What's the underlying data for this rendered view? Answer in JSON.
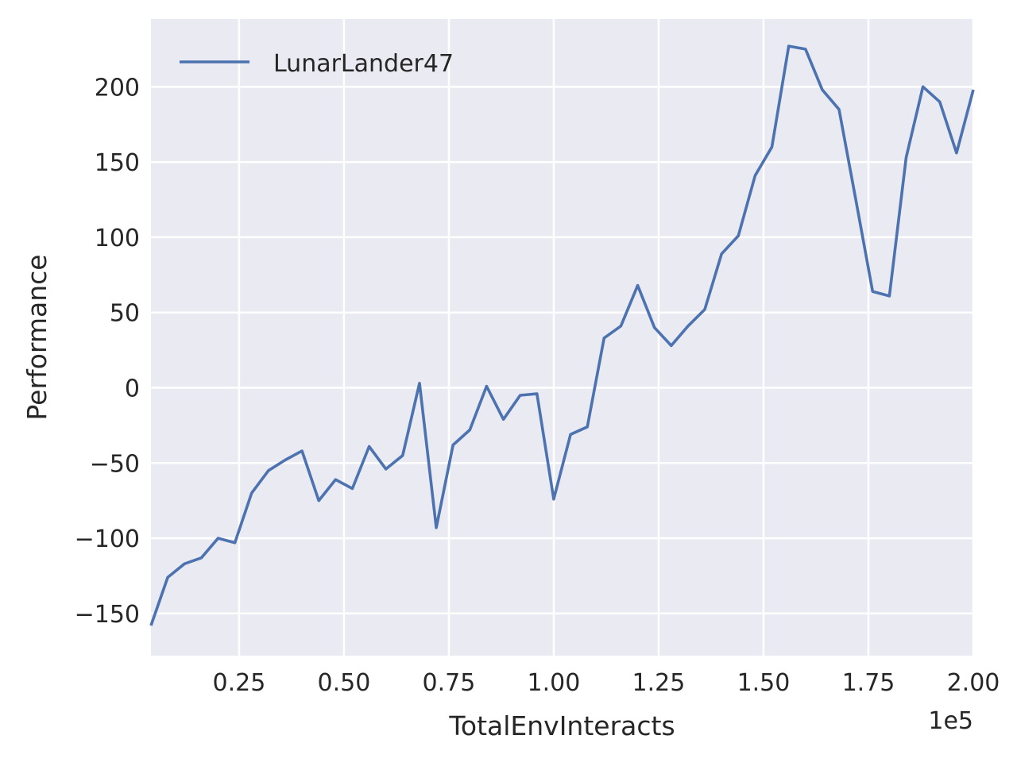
{
  "chart_data": {
    "type": "line",
    "title": "",
    "xlabel": "TotalEnvInteracts",
    "ylabel": "Performance",
    "x_offset_label": "1e5",
    "xlim": [
      0.04,
      2.0
    ],
    "ylim": [
      -178,
      245
    ],
    "x_ticks": [
      0.25,
      0.5,
      0.75,
      1.0,
      1.25,
      1.5,
      1.75,
      2.0
    ],
    "x_tick_labels": [
      "0.25",
      "0.50",
      "0.75",
      "1.00",
      "1.25",
      "1.50",
      "1.75",
      "2.00"
    ],
    "y_ticks": [
      -150,
      -100,
      -50,
      0,
      50,
      100,
      150,
      200
    ],
    "y_tick_labels": [
      "−150",
      "−100",
      "−50",
      "0",
      "50",
      "100",
      "150",
      "200"
    ],
    "grid": true,
    "background_color": "#eaeaf2",
    "grid_color": "#ffffff",
    "legend_position": "upper-left",
    "series": [
      {
        "name": "LunarLander47",
        "color": "#4c72b0",
        "x": [
          0.04,
          0.08,
          0.12,
          0.16,
          0.2,
          0.24,
          0.28,
          0.32,
          0.36,
          0.4,
          0.44,
          0.48,
          0.52,
          0.56,
          0.6,
          0.64,
          0.68,
          0.72,
          0.76,
          0.8,
          0.84,
          0.88,
          0.92,
          0.96,
          1.0,
          1.04,
          1.08,
          1.12,
          1.16,
          1.2,
          1.24,
          1.28,
          1.32,
          1.36,
          1.4,
          1.44,
          1.48,
          1.52,
          1.56,
          1.6,
          1.64,
          1.68,
          1.72,
          1.76,
          1.8,
          1.84,
          1.88,
          1.92,
          1.96,
          2.0
        ],
        "y": [
          -158,
          -126,
          -117,
          -113,
          -100,
          -103,
          -70,
          -55,
          -48,
          -42,
          -75,
          -61,
          -67,
          -39,
          -54,
          -45,
          3,
          -93,
          -38,
          -28,
          1,
          -21,
          -5,
          -4,
          -74,
          -31,
          -26,
          33,
          41,
          68,
          40,
          28,
          41,
          52,
          89,
          101,
          141,
          160,
          227,
          225,
          198,
          185,
          125,
          64,
          61,
          153,
          200,
          190,
          156,
          198
        ]
      }
    ]
  }
}
